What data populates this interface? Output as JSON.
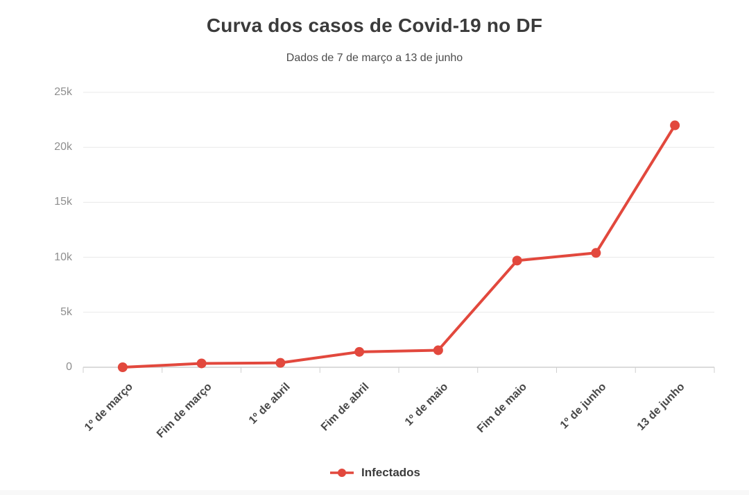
{
  "chart_data": {
    "type": "line",
    "title": "Curva dos casos de Covid-19 no DF",
    "subtitle": "Dados de 7 de março a 13 de junho",
    "categories": [
      "1º de março",
      "Fim de março",
      "1º de abril",
      "Fim de abril",
      "1º de maio",
      "Fim de maio",
      "1º de junho",
      "13 de junho"
    ],
    "series": [
      {
        "name": "Infectados",
        "color": "#e2483d",
        "marker": "circle",
        "values": [
          0,
          350,
          400,
          1400,
          1550,
          9700,
          10400,
          22000
        ]
      }
    ],
    "xlabel": "",
    "ylabel": "",
    "ylim": [
      0,
      25000
    ],
    "yticks": [
      {
        "value": 0,
        "label": "0"
      },
      {
        "value": 5000,
        "label": "5k"
      },
      {
        "value": 10000,
        "label": "10k"
      },
      {
        "value": 15000,
        "label": "15k"
      },
      {
        "value": 20000,
        "label": "20k"
      },
      {
        "value": 25000,
        "label": "25k"
      }
    ],
    "grid": "horizontal",
    "legend_position": "bottom-center"
  },
  "colors": {
    "background": "#ffffff",
    "series_red": "#e2483d",
    "title_text": "#3b3b3b",
    "subtitle_text": "#4c4c4c",
    "y_label_text": "#8e8e8e",
    "x_label_text": "#474747",
    "gridline": "#e8e8e8",
    "axis_line": "#cfcfcf"
  }
}
